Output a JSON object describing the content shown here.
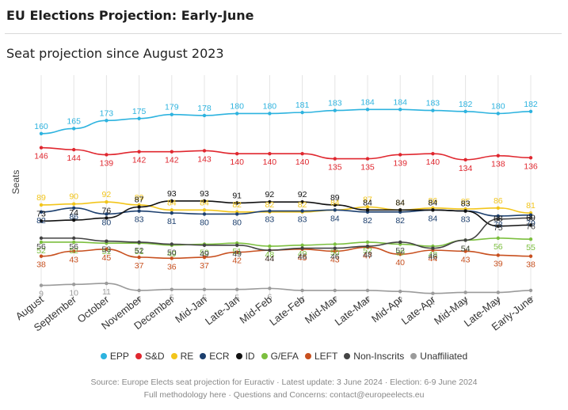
{
  "header": {
    "title": "EU Elections Projection: Early-June",
    "subtitle": "Seat projection since August 2023"
  },
  "chart_data": {
    "type": "line",
    "ylabel": "Seats",
    "ylim": [
      0,
      190
    ],
    "categories": [
      "August",
      "September",
      "October",
      "November",
      "December",
      "Mid-Jan",
      "Late-Jan",
      "Mid-Feb",
      "Late-Feb",
      "Mid-Mar",
      "Late-Mar",
      "Mid-Apr",
      "Late-Apr",
      "Mid-May",
      "Late-May",
      "Early-June"
    ],
    "series": [
      {
        "name": "EPP",
        "color": "#2db3df",
        "values": [
          160,
          165,
          173,
          175,
          179,
          178,
          180,
          180,
          181,
          183,
          184,
          184,
          183,
          182,
          180,
          182
        ]
      },
      {
        "name": "S&D",
        "color": "#e0272f",
        "values": [
          146,
          144,
          139,
          142,
          142,
          143,
          140,
          140,
          140,
          135,
          135,
          139,
          140,
          134,
          138,
          136
        ]
      },
      {
        "name": "RE",
        "color": "#f2c51b",
        "values": [
          89,
          90,
          92,
          89,
          84,
          84,
          82,
          82,
          82,
          84,
          87,
          84,
          86,
          85,
          86,
          81
        ]
      },
      {
        "name": "ECR",
        "color": "#1c3f6e",
        "values": [
          82,
          86,
          80,
          83,
          81,
          80,
          80,
          83,
          83,
          84,
          82,
          82,
          84,
          83,
          78,
          79
        ]
      },
      {
        "name": "ID",
        "color": "#111111",
        "values": [
          73,
          74,
          76,
          87,
          93,
          93,
          91,
          92,
          92,
          89,
          84,
          84,
          84,
          83,
          68,
          69
        ]
      },
      {
        "name": "G/EFA",
        "color": "#7cbf3f",
        "values": [
          52,
          52,
          51,
          51,
          49,
          50,
          51,
          48,
          49,
          50,
          52,
          50,
          48,
          54,
          56,
          55
        ]
      },
      {
        "name": "LEFT",
        "color": "#c8501f",
        "values": [
          38,
          43,
          45,
          37,
          36,
          37,
          42,
          44,
          45,
          43,
          47,
          40,
          44,
          43,
          39,
          38
        ]
      },
      {
        "name": "Non-Inscrits",
        "color": "#444444",
        "values": [
          56,
          56,
          53,
          52,
          50,
          49,
          49,
          44,
          46,
          46,
          48,
          52,
          46,
          54,
          75,
          76
        ]
      },
      {
        "name": "Unaffiliated",
        "color": "#9b9b9b",
        "values": [
          9,
          10,
          11,
          4,
          5,
          5,
          5,
          6,
          4,
          4,
          4,
          3,
          1,
          2,
          2,
          4
        ]
      }
    ]
  },
  "footer": {
    "source": "Source: Europe Elects seat projection for Euractiv · Latest update: 3 June 2024 · Election: 6-9 June 2024",
    "methodology": "Full methodology here · Questions and Concerns: contact@europeelects.eu"
  }
}
